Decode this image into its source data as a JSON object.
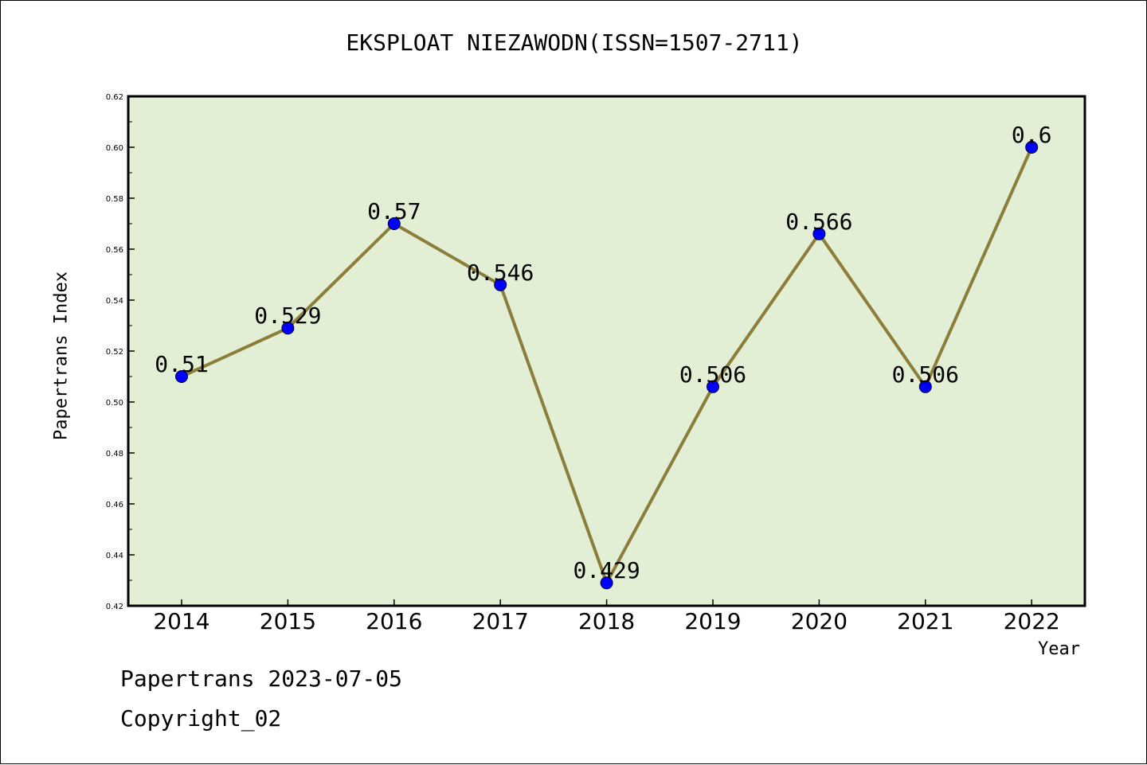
{
  "chart_data": {
    "type": "line",
    "title": "EKSPLOAT NIEZAWODN(ISSN=1507-2711)",
    "xlabel": "Year",
    "ylabel": "Papertrans Index",
    "categories": [
      "2014",
      "2015",
      "2016",
      "2017",
      "2018",
      "2019",
      "2020",
      "2021",
      "2022"
    ],
    "values": [
      0.51,
      0.529,
      0.57,
      0.546,
      0.429,
      0.506,
      0.566,
      0.506,
      0.6
    ],
    "data_labels": [
      "0.51",
      "0.529",
      "0.57",
      "0.546",
      "0.429",
      "0.506",
      "0.566",
      "0.506",
      "0.6"
    ],
    "ylim": [
      0.42,
      0.62
    ],
    "yticks": [
      "0.42",
      "0.44",
      "0.46",
      "0.48",
      "0.50",
      "0.52",
      "0.54",
      "0.56",
      "0.58",
      "0.60",
      "0.62"
    ],
    "grid": false,
    "colors": {
      "plot_background": "#e2efd5",
      "line": "#8b7d3a",
      "marker": "#0000ff"
    }
  },
  "footer": {
    "line1": "Papertrans 2023-07-05",
    "line2": "Copyright_02"
  }
}
